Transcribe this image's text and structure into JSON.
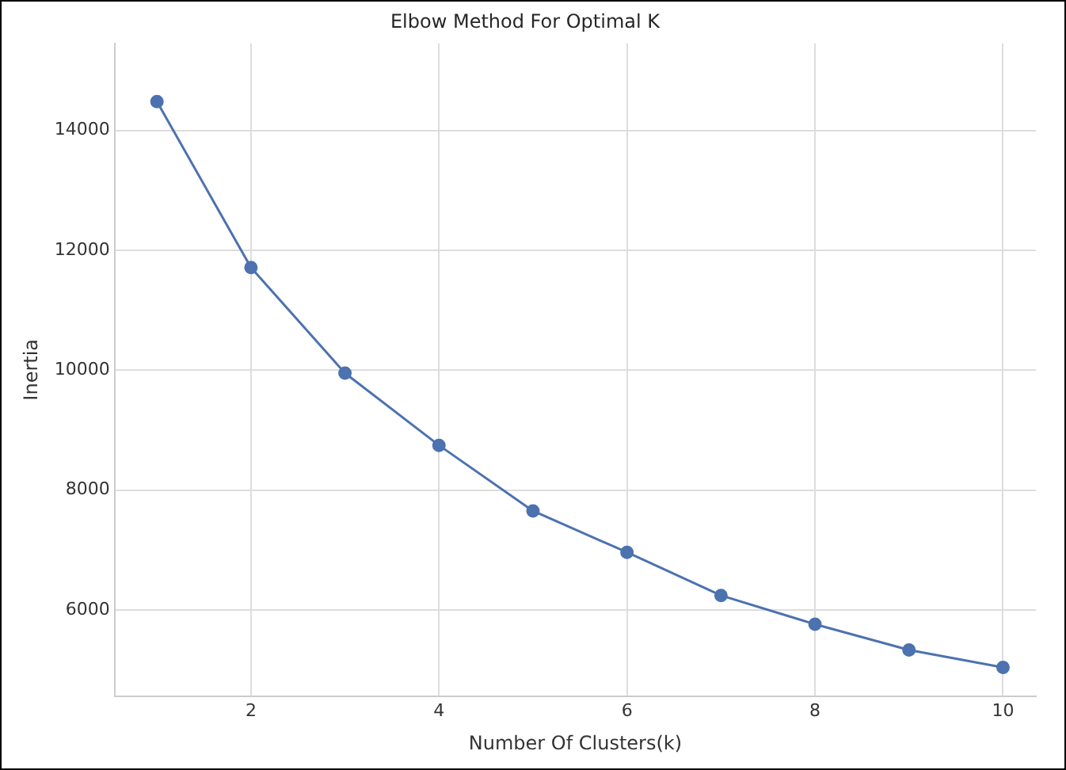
{
  "chart_data": {
    "type": "line",
    "title": "Elbow Method For Optimal K",
    "xlabel": "Number Of Clusters(k)",
    "ylabel": "Inertia",
    "x": [
      1,
      2,
      3,
      4,
      5,
      6,
      7,
      8,
      9,
      10
    ],
    "series": [
      {
        "color": "#4c72b0",
        "values": [
          14480,
          11710,
          9950,
          8745,
          7650,
          6960,
          6240,
          5760,
          5330,
          5040
        ]
      }
    ],
    "xlim": [
      0.55,
      10.35
    ],
    "xticks": [
      2,
      4,
      6,
      8,
      10
    ],
    "ylim": [
      4560,
      15450
    ],
    "yticks": [
      6000,
      8000,
      10000,
      12000,
      14000
    ],
    "grid": true,
    "marker": "circle",
    "line_style": "solid",
    "legend": false
  }
}
